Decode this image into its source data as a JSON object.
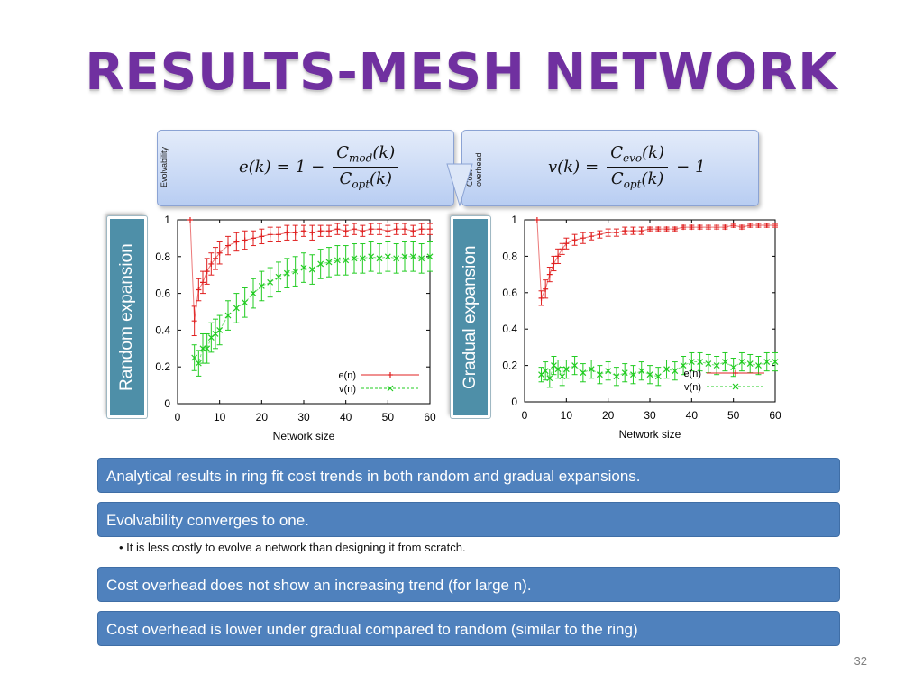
{
  "title": "RESULTS-MESH NETWORK",
  "equations": {
    "evolvability": {
      "tag": "Evolvability",
      "lhs": "e(k)",
      "eq": "=",
      "one": "1",
      "minus": "−",
      "num_base": "C",
      "num_sub": "mod",
      "num_arg": "(k)",
      "den_base": "C",
      "den_sub": "opt",
      "den_arg": "(k)"
    },
    "cost_overhead": {
      "tag_line1": "Cost",
      "tag_line2": "overhead",
      "lhs": "v(k)",
      "eq": "=",
      "num_base": "C",
      "num_sub": "evo",
      "num_arg": "(k)",
      "den_base": "C",
      "den_sub": "opt",
      "den_arg": "(k)",
      "minus": "−",
      "one": "1"
    }
  },
  "labels": {
    "random": "Random expansion",
    "gradual": "Gradual expansion"
  },
  "colors": {
    "accent_title": "#7030a0",
    "e_series": "#e02020",
    "v_series": "#22cc22",
    "bar": "#4f81bd",
    "side_label": "#4e8fa8"
  },
  "chart_data": [
    {
      "type": "line",
      "name": "random",
      "xlabel": "Network size",
      "ylabel": "",
      "xlim": [
        0,
        60
      ],
      "ylim": [
        0,
        1
      ],
      "xticks": [
        0,
        10,
        20,
        30,
        40,
        50,
        60
      ],
      "yticks": [
        0,
        0.2,
        0.4,
        0.6,
        0.8,
        1
      ],
      "ytick_labels": [
        "0",
        "0.2",
        "0.4",
        "0.6",
        "0.8",
        "1"
      ],
      "legend_position": "bottom-right",
      "x": [
        3,
        4,
        5,
        6,
        7,
        8,
        9,
        10,
        12,
        14,
        16,
        18,
        20,
        22,
        24,
        26,
        28,
        30,
        32,
        34,
        36,
        38,
        40,
        42,
        44,
        46,
        48,
        50,
        52,
        54,
        56,
        58,
        60
      ],
      "series": [
        {
          "name": "e(n)",
          "marker": "plus",
          "values": [
            1.0,
            0.45,
            0.62,
            0.66,
            0.72,
            0.76,
            0.79,
            0.82,
            0.86,
            0.88,
            0.89,
            0.9,
            0.91,
            0.92,
            0.92,
            0.93,
            0.93,
            0.94,
            0.93,
            0.94,
            0.94,
            0.95,
            0.94,
            0.95,
            0.94,
            0.95,
            0.95,
            0.94,
            0.95,
            0.95,
            0.94,
            0.95,
            0.95
          ],
          "errors": [
            0.0,
            0.08,
            0.06,
            0.06,
            0.07,
            0.06,
            0.06,
            0.06,
            0.05,
            0.05,
            0.05,
            0.04,
            0.04,
            0.04,
            0.04,
            0.04,
            0.04,
            0.03,
            0.04,
            0.03,
            0.03,
            0.03,
            0.03,
            0.03,
            0.03,
            0.03,
            0.03,
            0.03,
            0.03,
            0.03,
            0.03,
            0.03,
            0.03
          ]
        },
        {
          "name": "v(n)",
          "marker": "cross",
          "values": [
            null,
            0.25,
            0.22,
            0.3,
            0.3,
            0.36,
            0.38,
            0.4,
            0.48,
            0.52,
            0.55,
            0.6,
            0.64,
            0.66,
            0.69,
            0.71,
            0.72,
            0.74,
            0.73,
            0.76,
            0.77,
            0.78,
            0.78,
            0.79,
            0.79,
            0.8,
            0.79,
            0.8,
            0.79,
            0.8,
            0.8,
            0.79,
            0.8
          ],
          "errors": [
            0,
            0.07,
            0.07,
            0.08,
            0.08,
            0.08,
            0.08,
            0.08,
            0.08,
            0.08,
            0.08,
            0.08,
            0.08,
            0.08,
            0.08,
            0.08,
            0.08,
            0.08,
            0.08,
            0.08,
            0.08,
            0.08,
            0.08,
            0.08,
            0.08,
            0.08,
            0.08,
            0.08,
            0.08,
            0.08,
            0.08,
            0.08,
            0.08
          ]
        }
      ]
    },
    {
      "type": "line",
      "name": "gradual",
      "xlabel": "Network size",
      "ylabel": "",
      "xlim": [
        0,
        60
      ],
      "ylim": [
        0,
        1
      ],
      "xticks": [
        0,
        10,
        20,
        30,
        40,
        50,
        60
      ],
      "yticks": [
        0,
        0.2,
        0.4,
        0.6,
        0.8,
        1
      ],
      "ytick_labels": [
        "0",
        "0.2",
        "0.4",
        "0.6",
        "0.8",
        "1"
      ],
      "legend_position": "bottom-right",
      "x": [
        3,
        4,
        5,
        6,
        7,
        8,
        9,
        10,
        12,
        14,
        16,
        18,
        20,
        22,
        24,
        26,
        28,
        30,
        32,
        34,
        36,
        38,
        40,
        42,
        44,
        46,
        48,
        50,
        52,
        54,
        56,
        58,
        60
      ],
      "series": [
        {
          "name": "e(n)",
          "marker": "plus",
          "values": [
            1.0,
            0.57,
            0.62,
            0.7,
            0.76,
            0.8,
            0.84,
            0.87,
            0.89,
            0.9,
            0.91,
            0.92,
            0.93,
            0.93,
            0.94,
            0.94,
            0.94,
            0.95,
            0.95,
            0.95,
            0.95,
            0.96,
            0.96,
            0.96,
            0.96,
            0.96,
            0.96,
            0.97,
            0.96,
            0.97,
            0.97,
            0.97,
            0.97
          ],
          "errors": [
            0.0,
            0.04,
            0.05,
            0.04,
            0.04,
            0.04,
            0.03,
            0.03,
            0.03,
            0.03,
            0.02,
            0.02,
            0.02,
            0.02,
            0.02,
            0.02,
            0.02,
            0.01,
            0.01,
            0.01,
            0.01,
            0.01,
            0.01,
            0.01,
            0.01,
            0.01,
            0.01,
            0.01,
            0.01,
            0.01,
            0.01,
            0.01,
            0.01
          ]
        },
        {
          "name": "v(n)",
          "marker": "cross",
          "values": [
            null,
            0.15,
            0.17,
            0.13,
            0.2,
            0.18,
            0.14,
            0.18,
            0.2,
            0.16,
            0.18,
            0.15,
            0.17,
            0.14,
            0.16,
            0.15,
            0.17,
            0.15,
            0.14,
            0.18,
            0.17,
            0.2,
            0.22,
            0.22,
            0.21,
            0.2,
            0.22,
            0.19,
            0.22,
            0.21,
            0.2,
            0.22,
            0.22
          ],
          "errors": [
            0,
            0.04,
            0.05,
            0.05,
            0.05,
            0.05,
            0.05,
            0.05,
            0.05,
            0.05,
            0.05,
            0.05,
            0.05,
            0.05,
            0.05,
            0.05,
            0.05,
            0.05,
            0.05,
            0.05,
            0.05,
            0.05,
            0.05,
            0.05,
            0.05,
            0.05,
            0.05,
            0.05,
            0.05,
            0.05,
            0.05,
            0.05,
            0.05
          ]
        }
      ]
    }
  ],
  "bars": [
    "Analytical results in ring fit cost trends in both random and gradual expansions.",
    "Evolvability converges to one.",
    "Cost overhead does not show an increasing trend (for large n).",
    "Cost overhead is lower under gradual compared to random (similar to the ring)"
  ],
  "bullet": "• It is less costly to evolve a network than designing it from scratch.",
  "page_number": "32"
}
